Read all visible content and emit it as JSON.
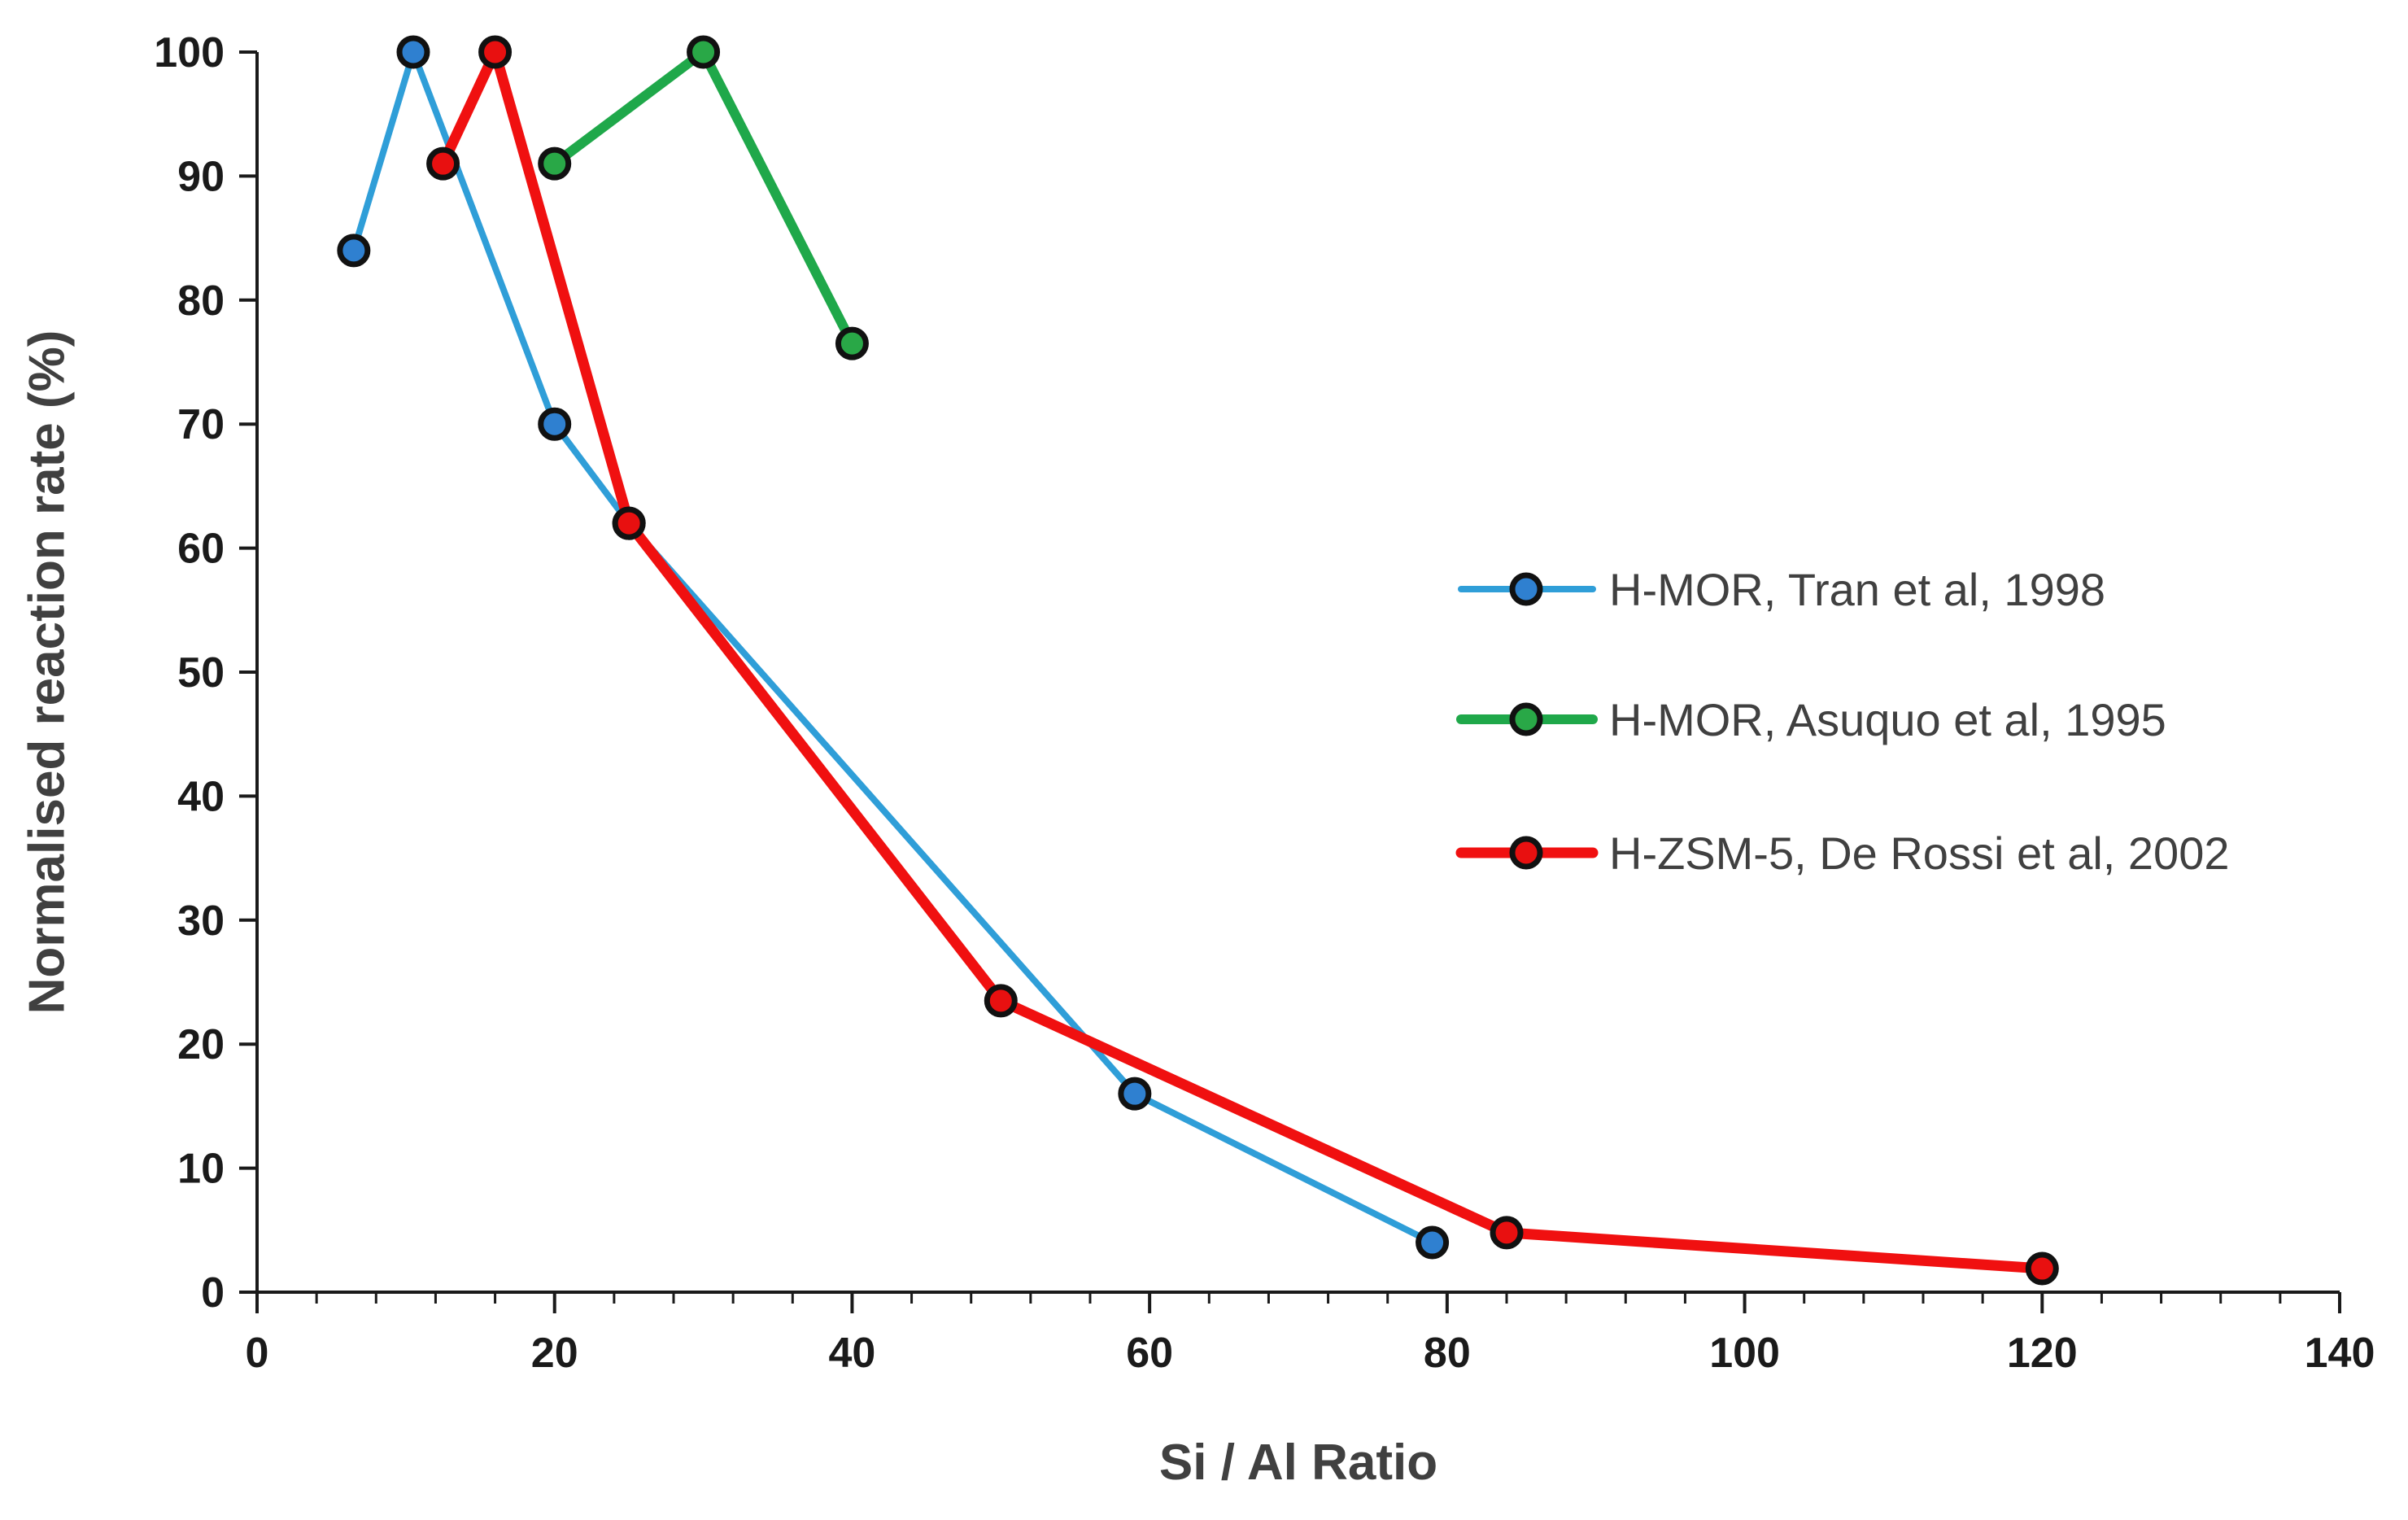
{
  "chart_data": {
    "type": "line",
    "title": "",
    "xlabel": "Si / Al Ratio",
    "ylabel": "Normalised reaction rate (%)",
    "xlim": [
      0,
      140
    ],
    "ylim": [
      0,
      100
    ],
    "x_major_ticks": [
      0,
      20,
      40,
      60,
      80,
      100,
      120,
      140
    ],
    "x_minor_step": 4,
    "y_major_ticks": [
      0,
      10,
      20,
      30,
      40,
      50,
      60,
      70,
      80,
      90,
      100
    ],
    "grid": false,
    "legend_position": "right",
    "series": [
      {
        "name": "H-MOR, Tran et al, 1998",
        "color": "#2f9ed8",
        "marker_color": "#2f80d0",
        "x": [
          6.5,
          10.5,
          20,
          25,
          59,
          79
        ],
        "y": [
          84,
          100,
          70,
          62,
          16,
          4
        ]
      },
      {
        "name": "H-MOR, Asuquo et al, 1995",
        "color": "#1fa84a",
        "marker_color": "#29a847",
        "x": [
          20,
          30,
          40
        ],
        "y": [
          91,
          100,
          76.5
        ]
      },
      {
        "name": "H-ZSM-5, De Rossi et al, 2002",
        "color": "#f01010",
        "marker_color": "#e81010",
        "x": [
          12.5,
          16,
          25,
          50,
          84,
          120
        ],
        "y": [
          91,
          100,
          62,
          23.5,
          4.8,
          1.9
        ]
      }
    ]
  }
}
